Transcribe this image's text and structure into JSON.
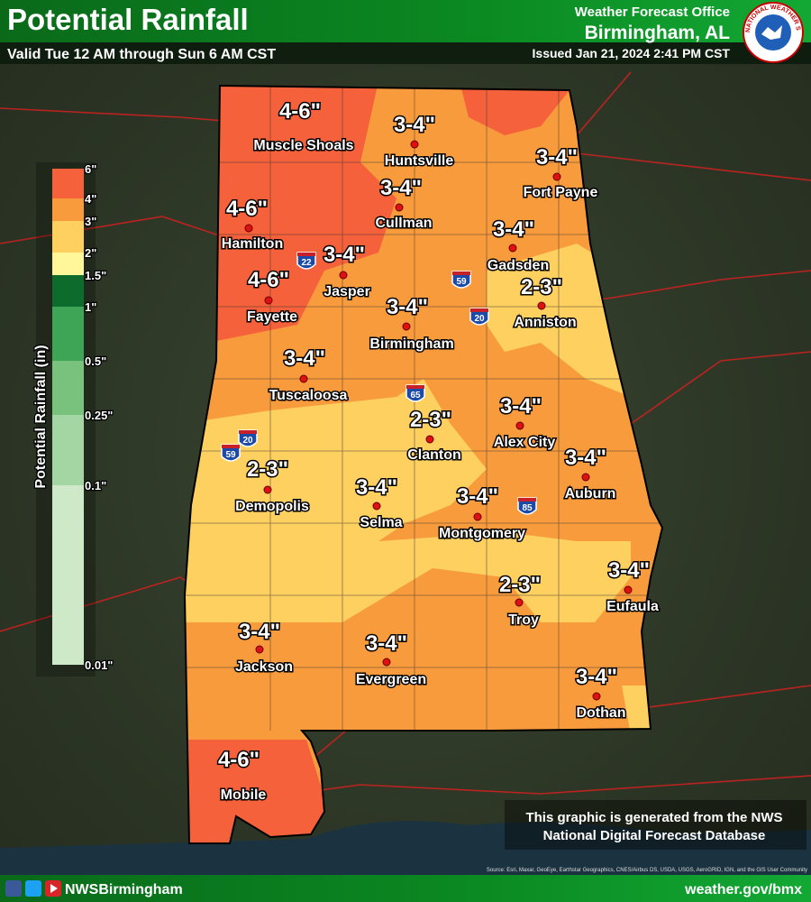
{
  "header": {
    "title": "Potential Rainfall",
    "subtitle": "Valid Tue 12 AM through Sun 6 AM CST",
    "office": "Weather Forecast Office",
    "location": "Birmingham, AL",
    "issued": "Issued Jan 21, 2024 2:41 PM CST",
    "logo": "NATIONAL WEATHER SERVICE"
  },
  "legend": {
    "title": "Potential Rainfall (in)",
    "labels": [
      "6\"",
      "4\"",
      "3\"",
      "2\"",
      "1.5\"",
      "1\"",
      "0.5\"",
      "0.25\"",
      "0.1\"",
      "0.01\""
    ]
  },
  "cities": [
    {
      "name": "Muscle Shoals",
      "amount": "4-6\""
    },
    {
      "name": "Huntsville",
      "amount": "3-4\""
    },
    {
      "name": "Fort Payne",
      "amount": "3-4\""
    },
    {
      "name": "Cullman",
      "amount": "3-4\""
    },
    {
      "name": "Hamilton",
      "amount": "4-6\""
    },
    {
      "name": "Jasper",
      "amount": "3-4\""
    },
    {
      "name": "Gadsden",
      "amount": "3-4\""
    },
    {
      "name": "Fayette",
      "amount": "4-6\""
    },
    {
      "name": "Birmingham",
      "amount": "3-4\""
    },
    {
      "name": "Anniston",
      "amount": "2-3\""
    },
    {
      "name": "Tuscaloosa",
      "amount": "3-4\""
    },
    {
      "name": "Alex City",
      "amount": "3-4\""
    },
    {
      "name": "Clanton",
      "amount": "2-3\""
    },
    {
      "name": "Auburn",
      "amount": "3-4\""
    },
    {
      "name": "Demopolis",
      "amount": "2-3\""
    },
    {
      "name": "Selma",
      "amount": "3-4\""
    },
    {
      "name": "Montgomery",
      "amount": "3-4\""
    },
    {
      "name": "Eufaula",
      "amount": "3-4\""
    },
    {
      "name": "Troy",
      "amount": "2-3\""
    },
    {
      "name": "Jackson",
      "amount": "3-4\""
    },
    {
      "name": "Evergreen",
      "amount": "3-4\""
    },
    {
      "name": "Dothan",
      "amount": "3-4\""
    },
    {
      "name": "Mobile",
      "amount": "4-6\""
    }
  ],
  "shields": [
    "22",
    "59",
    "20",
    "65",
    "20",
    "59",
    "85"
  ],
  "note": [
    "This graphic is generated from the NWS",
    "National Digital Forecast Database"
  ],
  "source": "Source: Esri, Maxar, GeoEye, Earthstar Geographics, CNES/Airbus DS, USDA, USGS, AeroGRID, IGN, and the GIS User Community",
  "footer": {
    "handle": "NWSBirmingham",
    "url": "weather.gov/bmx"
  }
}
